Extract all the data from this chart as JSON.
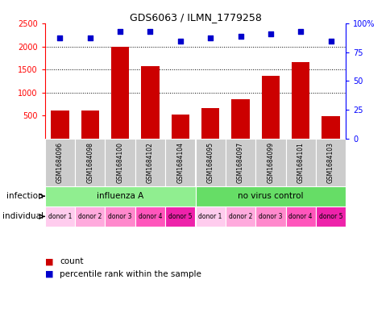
{
  "title": "GDS6063 / ILMN_1779258",
  "samples": [
    "GSM1684096",
    "GSM1684098",
    "GSM1684100",
    "GSM1684102",
    "GSM1684104",
    "GSM1684095",
    "GSM1684097",
    "GSM1684099",
    "GSM1684101",
    "GSM1684103"
  ],
  "counts": [
    600,
    600,
    2000,
    1580,
    520,
    660,
    860,
    1360,
    1660,
    490
  ],
  "percentiles": [
    88,
    88,
    93,
    93,
    85,
    88,
    89,
    91,
    93,
    85
  ],
  "bar_color": "#cc0000",
  "dot_color": "#0000cc",
  "ylim_left": [
    0,
    2500
  ],
  "ylim_right": [
    0,
    100
  ],
  "yticks_left": [
    500,
    1000,
    1500,
    2000,
    2500
  ],
  "yticks_right": [
    0,
    25,
    50,
    75,
    100
  ],
  "infection_groups": [
    {
      "label": "influenza A",
      "start": 0,
      "end": 5,
      "color": "#90ee90"
    },
    {
      "label": "no virus control",
      "start": 5,
      "end": 10,
      "color": "#66dd66"
    }
  ],
  "individual_labels": [
    "donor 1",
    "donor 2",
    "donor 3",
    "donor 4",
    "donor 5",
    "donor 1",
    "donor 2",
    "donor 3",
    "donor 4",
    "donor 5"
  ],
  "individual_colors": [
    "#ffccee",
    "#ffaadd",
    "#ff88cc",
    "#ff55bb",
    "#ee22aa",
    "#ffccee",
    "#ffaadd",
    "#ff88cc",
    "#ff55bb",
    "#ee22aa"
  ],
  "sample_box_color": "#cccccc",
  "legend_count_color": "#cc0000",
  "legend_pct_color": "#0000cc"
}
